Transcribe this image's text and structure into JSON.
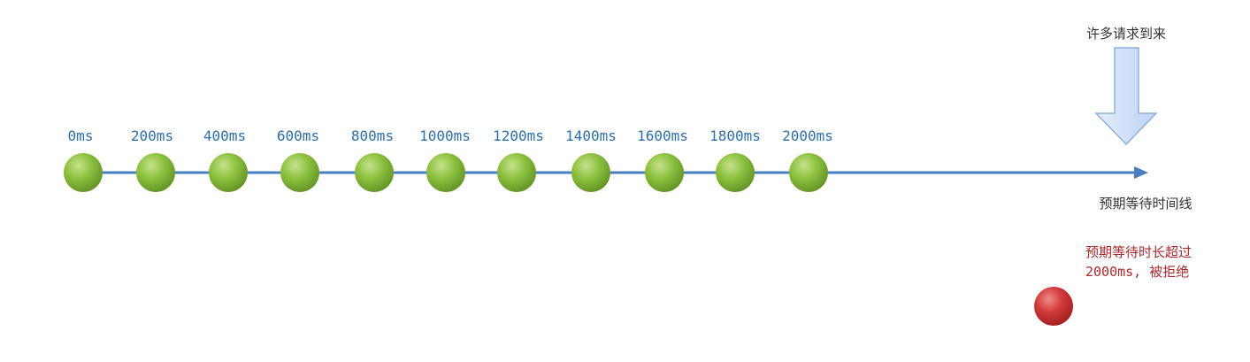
{
  "diagram": {
    "ticks": [
      "0ms",
      "200ms",
      "400ms",
      "600ms",
      "800ms",
      "1000ms",
      "1200ms",
      "1400ms",
      "1600ms",
      "1800ms",
      "2000ms"
    ],
    "arrival_label": "许多请求到来",
    "timeline_label": "预期等待时间线",
    "reject_label_line1": "预期等待时长超过",
    "reject_label_line2": "2000ms, 被拒绝"
  },
  "colors": {
    "timeline": "#4a7fbf",
    "tick_text": "#2d6ea8",
    "accepted_ball": "#7fb534",
    "rejected_ball": "#c0272d",
    "arrow_fill": "#cfe0f7",
    "arrow_stroke": "#8fb0dd",
    "reject_text": "#a8282c"
  }
}
